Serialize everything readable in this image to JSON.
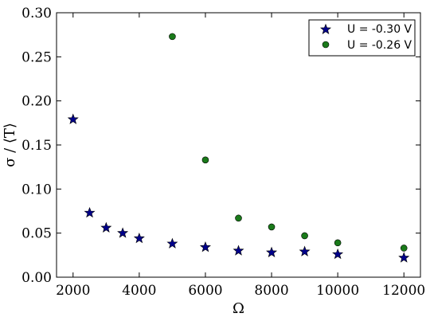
{
  "chart_data": {
    "type": "scatter",
    "title": "",
    "xlabel": "Ω",
    "ylabel": "σ / ⟨T⟩",
    "xlim": [
      1500,
      12500
    ],
    "ylim": [
      0.0,
      0.3
    ],
    "xticks": [
      2000,
      4000,
      6000,
      8000,
      10000,
      12000
    ],
    "yticks": [
      0.0,
      0.05,
      0.1,
      0.15,
      0.2,
      0.25,
      0.3
    ],
    "xtick_labels": [
      "2000",
      "4000",
      "6000",
      "8000",
      "10000",
      "12000"
    ],
    "ytick_labels": [
      "0.00",
      "0.05",
      "0.10",
      "0.15",
      "0.20",
      "0.25",
      "0.30"
    ],
    "grid": false,
    "legend_position": "top-right",
    "series": [
      {
        "name": "U = -0.30 V",
        "marker": "star",
        "color": "#00008b",
        "x": [
          2000,
          2500,
          3000,
          3500,
          4000,
          5000,
          6000,
          7000,
          8000,
          9000,
          10000,
          12000
        ],
        "y": [
          0.179,
          0.073,
          0.056,
          0.05,
          0.044,
          0.038,
          0.034,
          0.03,
          0.028,
          0.029,
          0.026,
          0.022
        ]
      },
      {
        "name": "U = -0.26 V",
        "marker": "circle",
        "color": "#1a7a1a",
        "x": [
          5000,
          6000,
          7000,
          8000,
          9000,
          10000,
          12000
        ],
        "y": [
          0.273,
          0.133,
          0.067,
          0.057,
          0.047,
          0.039,
          0.033
        ]
      }
    ]
  }
}
